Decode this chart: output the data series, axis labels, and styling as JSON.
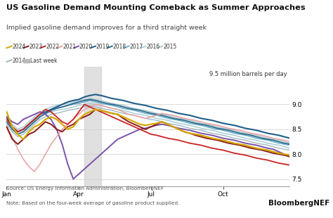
{
  "title": "US Gasoline Demand Mounting Comeback as Summer Approaches",
  "subtitle": "Implied gasoline demand improves for a third straight week",
  "source_note": "Source: US Energy Information Administration, BloombergNEF\nNote: Based on the four-week average of gasoline product supplied.",
  "brand": "BloombergNEF",
  "ylabel_annotation": "9.5 million barrels per day",
  "ylim": [
    7.35,
    9.75
  ],
  "yticks": [
    7.5,
    8.0,
    8.5,
    9.0
  ],
  "xtick_labels": [
    "Jan",
    "Apr",
    "Jul",
    "Oct"
  ],
  "bg_color": "#ffffff",
  "legend_items": [
    {
      "label": "2024",
      "color": "#d4a800"
    },
    {
      "label": "2023",
      "color": "#8b1a1a"
    },
    {
      "label": "2022",
      "color": "#cc2222"
    },
    {
      "label": "2021",
      "color": "#e8a0a0"
    },
    {
      "label": "2020",
      "color": "#7b52ab"
    },
    {
      "label": "2019",
      "color": "#1f5f8b"
    },
    {
      "label": "2018",
      "color": "#2b6b8b"
    },
    {
      "label": "2017",
      "color": "#6ab0c8"
    },
    {
      "label": "2016",
      "color": "#a8cdd8"
    },
    {
      "label": "2015",
      "color": "#b0c8d0"
    },
    {
      "label": "2014",
      "color": "#a0b8c0"
    },
    {
      "label": "Last week",
      "color": "#cccccc"
    }
  ],
  "series": [
    {
      "year": "2024",
      "color": "#d4a800",
      "lw": 1.6,
      "zorder": 10,
      "values": [
        8.85,
        8.55,
        8.4,
        8.3,
        8.45,
        8.55,
        8.6,
        8.7,
        8.75,
        8.7,
        8.6,
        8.5,
        8.55,
        8.7,
        8.8,
        8.85,
        8.9,
        8.88,
        8.85,
        8.82,
        8.8,
        8.75,
        8.7,
        8.65,
        8.6,
        8.58,
        8.6,
        8.62,
        8.65,
        8.6,
        8.55,
        8.5,
        8.45,
        8.42,
        8.4,
        8.38,
        8.35,
        8.32,
        8.3,
        8.28,
        8.25,
        8.22,
        8.2,
        8.18,
        8.15,
        8.12,
        8.1,
        8.08,
        8.05,
        8.02,
        8.0,
        7.98
      ]
    },
    {
      "year": "2023",
      "color": "#8b1a1a",
      "lw": 1.4,
      "zorder": 9,
      "values": [
        8.55,
        8.3,
        8.2,
        8.3,
        8.4,
        8.45,
        8.55,
        8.65,
        8.6,
        8.5,
        8.45,
        8.55,
        8.6,
        8.7,
        8.75,
        8.8,
        8.9,
        8.88,
        8.85,
        8.82,
        8.8,
        8.72,
        8.65,
        8.6,
        8.55,
        8.5,
        8.55,
        8.6,
        8.65,
        8.6,
        8.55,
        8.5,
        8.45,
        8.42,
        8.38,
        8.35,
        8.32,
        8.3,
        8.28,
        8.25,
        8.22,
        8.2,
        8.18,
        8.15,
        8.12,
        8.1,
        8.08,
        8.05,
        8.02,
        8.0,
        7.98,
        7.95
      ]
    },
    {
      "year": "2022",
      "color": "#cc2222",
      "lw": 1.3,
      "zorder": 8,
      "values": [
        8.7,
        8.55,
        8.45,
        8.5,
        8.6,
        8.7,
        8.8,
        8.9,
        8.85,
        8.75,
        8.65,
        8.6,
        8.7,
        8.85,
        9.0,
        8.95,
        8.9,
        8.85,
        8.8,
        8.75,
        8.7,
        8.65,
        8.6,
        8.55,
        8.5,
        8.45,
        8.4,
        8.38,
        8.35,
        8.32,
        8.3,
        8.28,
        8.25,
        8.22,
        8.2,
        8.18,
        8.15,
        8.12,
        8.1,
        8.08,
        8.05,
        8.02,
        8.0,
        7.98,
        7.95,
        7.92,
        7.9,
        7.88,
        7.85,
        7.82,
        7.8,
        7.78
      ]
    },
    {
      "year": "2021",
      "color": "#e8a0a0",
      "lw": 1.1,
      "zorder": 7,
      "values": [
        8.55,
        8.35,
        8.1,
        7.9,
        7.75,
        7.65,
        7.8,
        8.0,
        8.2,
        8.35,
        8.5,
        8.6,
        8.7,
        8.8,
        8.9,
        8.95,
        9.0,
        8.98,
        8.95,
        8.92,
        8.9,
        8.85,
        8.8,
        8.78,
        8.75,
        8.72,
        8.75,
        8.78,
        8.82,
        8.8,
        8.78,
        8.75,
        8.72,
        8.7,
        8.68,
        8.65,
        8.62,
        8.6,
        8.58,
        8.55,
        8.52,
        8.5,
        8.48,
        8.45,
        8.42,
        8.4,
        8.38,
        8.35,
        8.32,
        8.3,
        8.28,
        8.25
      ]
    },
    {
      "year": "2020",
      "color": "#7b52ab",
      "lw": 1.4,
      "zorder": 6,
      "values": [
        8.75,
        8.65,
        8.6,
        8.7,
        8.75,
        8.8,
        8.85,
        8.8,
        8.7,
        8.5,
        8.2,
        7.8,
        7.5,
        7.6,
        7.7,
        7.8,
        7.9,
        8.0,
        8.1,
        8.2,
        8.3,
        8.35,
        8.4,
        8.45,
        8.5,
        8.52,
        8.55,
        8.58,
        8.6,
        8.58,
        8.55,
        8.52,
        8.5,
        8.48,
        8.45,
        8.42,
        8.4,
        8.38,
        8.35,
        8.32,
        8.3,
        8.28,
        8.25,
        8.22,
        8.2,
        8.18,
        8.15,
        8.12,
        8.1,
        8.05,
        8.0,
        7.95
      ]
    },
    {
      "year": "2019",
      "color": "#1f5f8b",
      "lw": 1.5,
      "zorder": 5,
      "values": [
        8.75,
        8.55,
        8.45,
        8.5,
        8.6,
        8.7,
        8.8,
        8.85,
        8.9,
        8.95,
        9.0,
        9.05,
        9.08,
        9.1,
        9.15,
        9.18,
        9.2,
        9.18,
        9.15,
        9.12,
        9.1,
        9.08,
        9.05,
        9.02,
        9.0,
        8.98,
        8.95,
        8.92,
        8.9,
        8.88,
        8.85,
        8.82,
        8.8,
        8.78,
        8.75,
        8.72,
        8.7,
        8.68,
        8.65,
        8.62,
        8.6,
        8.58,
        8.55,
        8.52,
        8.5,
        8.48,
        8.45,
        8.42,
        8.4,
        8.38,
        8.35,
        8.32
      ]
    },
    {
      "year": "2018",
      "color": "#2b6b8b",
      "lw": 1.3,
      "zorder": 4,
      "values": [
        8.65,
        8.5,
        8.4,
        8.45,
        8.55,
        8.65,
        8.75,
        8.82,
        8.88,
        8.92,
        8.95,
        8.98,
        9.02,
        9.05,
        9.08,
        9.1,
        9.08,
        9.05,
        9.02,
        9.0,
        8.98,
        8.95,
        8.92,
        8.9,
        8.88,
        8.85,
        8.82,
        8.8,
        8.78,
        8.75,
        8.72,
        8.7,
        8.68,
        8.65,
        8.62,
        8.6,
        8.58,
        8.55,
        8.52,
        8.5,
        8.48,
        8.45,
        8.42,
        8.4,
        8.38,
        8.35,
        8.32,
        8.3,
        8.28,
        8.25,
        8.22,
        8.2
      ]
    },
    {
      "year": "2017",
      "color": "#6ab0c8",
      "lw": 1.1,
      "zorder": 3,
      "values": [
        8.7,
        8.55,
        8.45,
        8.5,
        8.6,
        8.7,
        8.8,
        8.85,
        8.9,
        8.92,
        8.95,
        8.98,
        9.0,
        9.02,
        9.05,
        9.08,
        9.05,
        9.02,
        9.0,
        8.98,
        8.95,
        8.92,
        8.9,
        8.88,
        8.85,
        8.82,
        8.8,
        8.78,
        8.75,
        8.72,
        8.7,
        8.68,
        8.65,
        8.62,
        8.6,
        8.58,
        8.55,
        8.52,
        8.5,
        8.48,
        8.45,
        8.42,
        8.4,
        8.38,
        8.35,
        8.32,
        8.3,
        8.28,
        8.25,
        8.22,
        8.2,
        8.18
      ]
    },
    {
      "year": "2016",
      "color": "#a8cdd8",
      "lw": 1.1,
      "zorder": 3,
      "values": [
        8.65,
        8.5,
        8.4,
        8.45,
        8.55,
        8.65,
        8.75,
        8.8,
        8.85,
        8.88,
        8.9,
        8.92,
        8.95,
        8.98,
        9.0,
        9.02,
        9.0,
        8.98,
        8.95,
        8.92,
        8.9,
        8.88,
        8.85,
        8.82,
        8.8,
        8.78,
        8.75,
        8.72,
        8.7,
        8.68,
        8.65,
        8.62,
        8.6,
        8.58,
        8.55,
        8.52,
        8.5,
        8.48,
        8.45,
        8.42,
        8.4,
        8.38,
        8.35,
        8.32,
        8.3,
        8.28,
        8.25,
        8.22,
        8.2,
        8.18,
        8.15,
        8.12
      ]
    },
    {
      "year": "2015",
      "color": "#b0c8d0",
      "lw": 1.1,
      "zorder": 2,
      "values": [
        8.75,
        8.6,
        8.5,
        8.55,
        8.65,
        8.75,
        8.85,
        8.9,
        8.95,
        8.98,
        9.0,
        9.02,
        9.05,
        9.08,
        9.1,
        9.12,
        9.1,
        9.08,
        9.05,
        9.02,
        9.0,
        8.98,
        8.95,
        8.92,
        8.9,
        8.88,
        8.85,
        8.82,
        8.8,
        8.78,
        8.75,
        8.72,
        8.7,
        8.68,
        8.65,
        8.62,
        8.6,
        8.58,
        8.55,
        8.52,
        8.5,
        8.48,
        8.45,
        8.42,
        8.4,
        8.38,
        8.35,
        8.32,
        8.3,
        8.28,
        8.25,
        8.22
      ]
    },
    {
      "year": "2014",
      "color": "#a0b8c0",
      "lw": 1.0,
      "zorder": 2,
      "values": [
        8.6,
        8.45,
        8.35,
        8.4,
        8.5,
        8.6,
        8.7,
        8.75,
        8.8,
        8.82,
        8.85,
        8.88,
        8.9,
        8.92,
        8.95,
        8.98,
        8.95,
        8.92,
        8.9,
        8.88,
        8.85,
        8.82,
        8.8,
        8.78,
        8.75,
        8.72,
        8.7,
        8.68,
        8.65,
        8.62,
        8.6,
        8.58,
        8.55,
        8.52,
        8.5,
        8.48,
        8.45,
        8.42,
        8.4,
        8.38,
        8.35,
        8.32,
        8.3,
        8.28,
        8.25,
        8.22,
        8.2,
        8.18,
        8.15,
        8.12,
        8.1,
        8.08
      ]
    }
  ]
}
